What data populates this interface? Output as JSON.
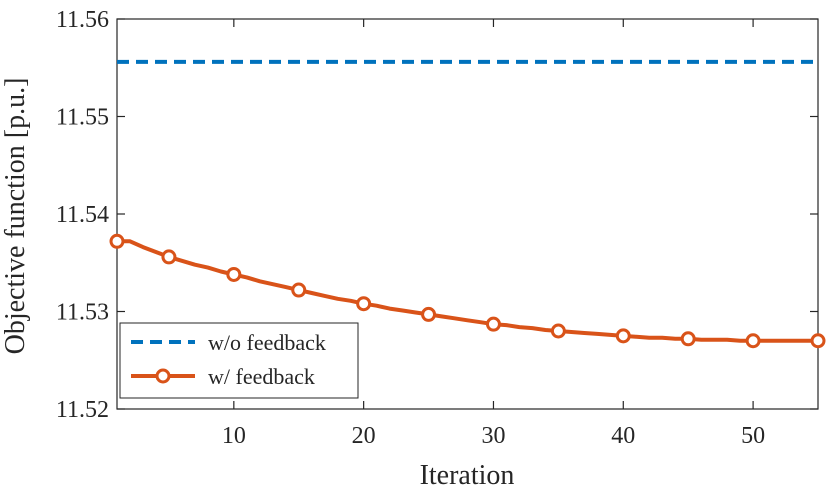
{
  "chart_data": {
    "type": "line",
    "xlabel": "Iteration",
    "ylabel": "Objective function [p.u.]",
    "xlim": [
      1,
      55
    ],
    "ylim": [
      11.52,
      11.56
    ],
    "xticks": [
      10,
      20,
      30,
      40,
      50
    ],
    "yticks": [
      11.52,
      11.53,
      11.54,
      11.55,
      11.56
    ],
    "xtick_labels": [
      "10",
      "20",
      "30",
      "40",
      "50"
    ],
    "ytick_labels": [
      "11.52",
      "11.53",
      "11.54",
      "11.55",
      "11.56"
    ],
    "grid": false,
    "legend_location": "bottom-left",
    "series": [
      {
        "name": "w/o feedback",
        "style": "dashed",
        "color": "#0072BD",
        "x": [
          1,
          55
        ],
        "y": [
          11.5556,
          11.5556
        ]
      },
      {
        "name": "w/ feedback",
        "style": "solid",
        "marker": "circle",
        "color": "#D95319",
        "x": [
          1,
          2,
          3,
          4,
          5,
          6,
          7,
          8,
          9,
          10,
          11,
          12,
          13,
          14,
          15,
          16,
          17,
          18,
          19,
          20,
          21,
          22,
          23,
          24,
          25,
          26,
          27,
          28,
          29,
          30,
          31,
          32,
          33,
          34,
          35,
          36,
          37,
          38,
          39,
          40,
          41,
          42,
          43,
          44,
          45,
          46,
          47,
          48,
          49,
          50,
          51,
          52,
          53,
          54,
          55
        ],
        "y": [
          11.5372,
          11.5372,
          11.5366,
          11.5361,
          11.5356,
          11.5352,
          11.5348,
          11.5345,
          11.5341,
          11.5338,
          11.5335,
          11.5331,
          11.5328,
          11.5325,
          11.5322,
          11.5319,
          11.5316,
          11.5313,
          11.5311,
          11.5308,
          11.5306,
          11.5303,
          11.5301,
          11.5299,
          11.5297,
          11.5295,
          11.5293,
          11.5291,
          11.5289,
          11.5287,
          11.5286,
          11.5284,
          11.5283,
          11.5281,
          11.528,
          11.5279,
          11.5278,
          11.5277,
          11.5276,
          11.5275,
          11.5274,
          11.5273,
          11.5273,
          11.5272,
          11.5272,
          11.5271,
          11.5271,
          11.5271,
          11.527,
          11.527,
          11.527,
          11.527,
          11.527,
          11.527,
          11.527
        ],
        "marker_x": [
          1,
          5,
          10,
          15,
          20,
          25,
          30,
          35,
          40,
          45,
          50,
          55
        ]
      }
    ]
  }
}
